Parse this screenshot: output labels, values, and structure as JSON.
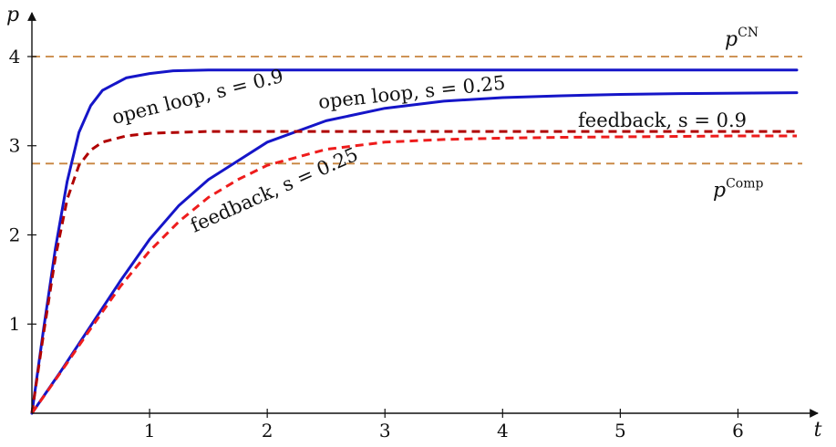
{
  "chart_data": {
    "type": "line",
    "title": "",
    "xlabel": "t",
    "ylabel": "p",
    "xlim": [
      0,
      6.5
    ],
    "ylim": [
      0,
      4.45
    ],
    "xticks": [
      1,
      2,
      3,
      4,
      5,
      6
    ],
    "yticks": [
      1,
      2,
      3,
      4
    ],
    "grid": false,
    "legend": "none",
    "reference_lines": [
      {
        "label_base": "p",
        "label_sup": "CN",
        "y": 4.0,
        "color": "#c8843e"
      },
      {
        "label_base": "p",
        "label_sup": "Comp",
        "y": 2.8,
        "color": "#c8843e"
      }
    ],
    "series": [
      {
        "label": "open loop, s = 0.9",
        "style": "solid",
        "color": "#1515c8",
        "x": [
          0,
          0.1,
          0.2,
          0.3,
          0.4,
          0.5,
          0.6,
          0.8,
          1.0,
          1.2,
          1.5,
          2.0,
          3.0,
          4.0,
          5.0,
          6.0,
          6.5
        ],
        "y": [
          0,
          0.95,
          1.85,
          2.6,
          3.15,
          3.45,
          3.62,
          3.76,
          3.81,
          3.84,
          3.85,
          3.85,
          3.85,
          3.85,
          3.85,
          3.85,
          3.85
        ]
      },
      {
        "label": "open loop, s = 0.25",
        "style": "solid",
        "color": "#1515c8",
        "x": [
          0,
          0.25,
          0.5,
          0.75,
          1.0,
          1.25,
          1.5,
          2.0,
          2.5,
          3.0,
          3.5,
          4.0,
          4.5,
          5.0,
          5.5,
          6.0,
          6.5
        ],
        "y": [
          0,
          0.48,
          0.98,
          1.48,
          1.95,
          2.33,
          2.62,
          3.04,
          3.28,
          3.42,
          3.5,
          3.54,
          3.56,
          3.575,
          3.585,
          3.59,
          3.595
        ]
      },
      {
        "label": "feedback, s = 0.9",
        "style": "dashed",
        "color": "#b00000",
        "x": [
          0,
          0.1,
          0.2,
          0.3,
          0.4,
          0.5,
          0.6,
          0.8,
          1.0,
          1.5,
          2.0,
          3.0,
          4.0,
          5.0,
          6.0,
          6.5
        ],
        "y": [
          0,
          0.9,
          1.75,
          2.4,
          2.78,
          2.95,
          3.04,
          3.11,
          3.14,
          3.16,
          3.16,
          3.16,
          3.16,
          3.16,
          3.16,
          3.16
        ]
      },
      {
        "label": "feedback, s = 0.25",
        "style": "dashed",
        "color": "#ee1c1c",
        "x": [
          0,
          0.25,
          0.5,
          0.75,
          1.0,
          1.25,
          1.5,
          1.75,
          2.0,
          2.5,
          3.0,
          3.5,
          4.0,
          4.5,
          5.0,
          5.5,
          6.0,
          6.5
        ],
        "y": [
          0,
          0.47,
          0.95,
          1.42,
          1.82,
          2.15,
          2.42,
          2.62,
          2.78,
          2.96,
          3.04,
          3.07,
          3.085,
          3.095,
          3.1,
          3.105,
          3.11,
          3.11
        ]
      }
    ]
  }
}
